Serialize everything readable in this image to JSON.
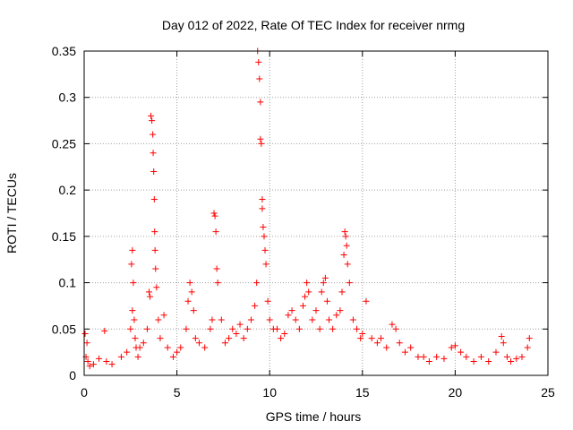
{
  "chart_data": {
    "type": "scatter",
    "title": "Day 012 of 2022, Rate Of TEC Index for receiver nrmg",
    "xlabel": "GPS time / hours",
    "ylabel": "ROTI / TECUs",
    "xlim": [
      0,
      25
    ],
    "ylim": [
      0,
      0.35
    ],
    "xticks": [
      0,
      5,
      10,
      15,
      20,
      25
    ],
    "yticks": [
      0,
      0.05,
      0.1,
      0.15,
      0.2,
      0.25,
      0.3,
      0.35
    ],
    "xtick_labels": [
      "0",
      "5",
      "10",
      "15",
      "20",
      "25"
    ],
    "ytick_labels": [
      "0",
      "0.05",
      "0.1",
      "0.15",
      "0.2",
      "0.25",
      "0.3",
      "0.35"
    ],
    "grid": true,
    "marker": "plus",
    "color": "#ff0000",
    "series": [
      {
        "x": [
          0.05,
          0.1,
          0.15,
          0.2,
          0.3,
          0.5,
          0.8,
          1.1,
          1.2,
          1.5,
          2.0,
          2.3,
          2.5,
          2.55,
          2.6,
          2.6,
          2.65,
          2.7,
          2.75,
          2.8,
          2.9,
          3.0,
          3.2,
          3.4,
          3.5,
          3.55,
          3.6,
          3.65,
          3.7,
          3.72,
          3.75,
          3.78,
          3.8,
          3.82,
          3.85,
          3.9,
          4.0,
          4.1,
          4.3,
          4.5,
          4.8,
          5.0,
          5.2,
          5.5,
          5.6,
          5.7,
          5.8,
          5.9,
          6.0,
          6.2,
          6.5,
          6.8,
          6.9,
          7.0,
          7.05,
          7.1,
          7.15,
          7.2,
          7.4,
          7.6,
          7.8,
          8.0,
          8.2,
          8.4,
          8.6,
          8.8,
          9.0,
          9.2,
          9.3,
          9.35,
          9.4,
          9.45,
          9.5,
          9.5,
          9.55,
          9.6,
          9.6,
          9.65,
          9.7,
          9.75,
          9.8,
          9.9,
          10.0,
          10.2,
          10.4,
          10.6,
          10.8,
          11.0,
          11.2,
          11.4,
          11.6,
          11.8,
          11.9,
          12.0,
          12.1,
          12.3,
          12.5,
          12.7,
          12.8,
          12.9,
          13.0,
          13.1,
          13.2,
          13.4,
          13.6,
          13.8,
          13.9,
          14.0,
          14.05,
          14.1,
          14.15,
          14.2,
          14.3,
          14.5,
          14.7,
          14.9,
          15.0,
          15.2,
          15.5,
          15.8,
          16.0,
          16.3,
          16.6,
          16.8,
          17.0,
          17.3,
          17.6,
          18.0,
          18.3,
          18.6,
          19.0,
          19.4,
          19.8,
          20.0,
          20.3,
          20.6,
          21.0,
          21.4,
          21.8,
          22.2,
          22.5,
          22.6,
          22.8,
          23.0,
          23.3,
          23.6,
          23.9,
          24.0
        ],
        "y": [
          0.045,
          0.02,
          0.035,
          0.015,
          0.01,
          0.012,
          0.018,
          0.048,
          0.015,
          0.012,
          0.02,
          0.025,
          0.05,
          0.12,
          0.135,
          0.07,
          0.1,
          0.06,
          0.04,
          0.03,
          0.02,
          0.03,
          0.035,
          0.05,
          0.09,
          0.085,
          0.28,
          0.275,
          0.26,
          0.24,
          0.22,
          0.19,
          0.155,
          0.135,
          0.115,
          0.095,
          0.06,
          0.04,
          0.065,
          0.03,
          0.02,
          0.025,
          0.03,
          0.05,
          0.08,
          0.1,
          0.09,
          0.07,
          0.04,
          0.035,
          0.03,
          0.05,
          0.06,
          0.175,
          0.172,
          0.155,
          0.115,
          0.1,
          0.06,
          0.035,
          0.04,
          0.05,
          0.045,
          0.055,
          0.04,
          0.05,
          0.06,
          0.075,
          0.1,
          0.35,
          0.338,
          0.32,
          0.295,
          0.255,
          0.25,
          0.19,
          0.18,
          0.16,
          0.15,
          0.135,
          0.12,
          0.08,
          0.06,
          0.05,
          0.05,
          0.04,
          0.045,
          0.065,
          0.07,
          0.06,
          0.05,
          0.075,
          0.085,
          0.1,
          0.09,
          0.06,
          0.07,
          0.05,
          0.09,
          0.1,
          0.105,
          0.08,
          0.06,
          0.05,
          0.065,
          0.07,
          0.09,
          0.13,
          0.155,
          0.15,
          0.14,
          0.12,
          0.1,
          0.06,
          0.05,
          0.04,
          0.045,
          0.08,
          0.04,
          0.035,
          0.04,
          0.03,
          0.055,
          0.05,
          0.035,
          0.025,
          0.03,
          0.02,
          0.02,
          0.015,
          0.02,
          0.018,
          0.03,
          0.032,
          0.025,
          0.02,
          0.015,
          0.02,
          0.015,
          0.025,
          0.042,
          0.035,
          0.02,
          0.015,
          0.018,
          0.02,
          0.03,
          0.04
        ]
      }
    ]
  }
}
